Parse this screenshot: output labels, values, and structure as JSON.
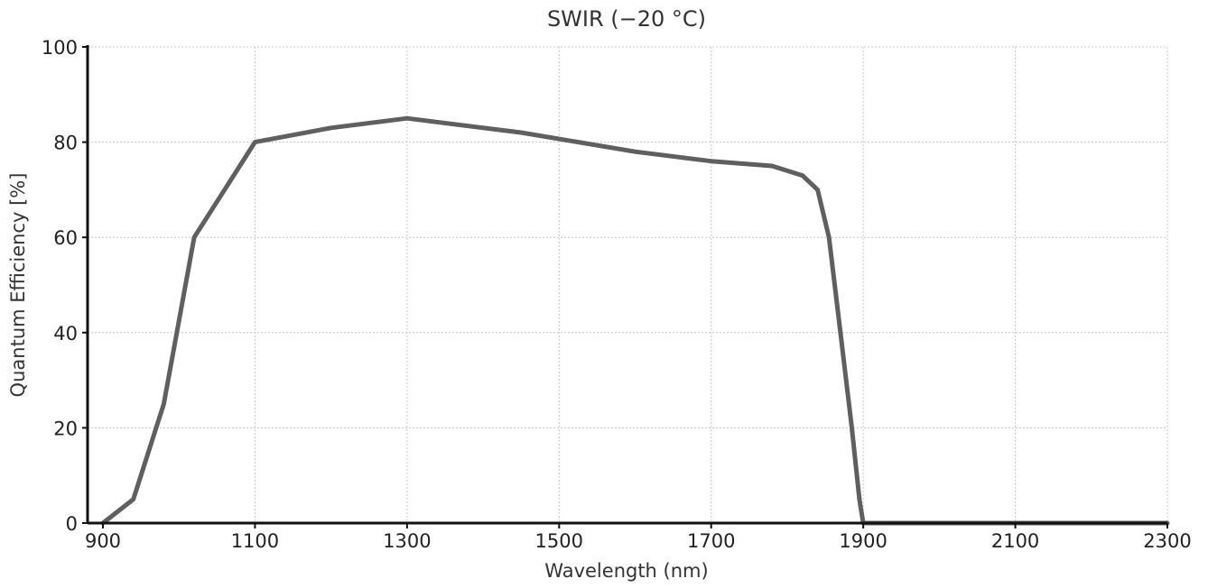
{
  "chart_data": {
    "type": "line",
    "title": "SWIR (−20 °C)",
    "xlabel": "Wavelength (nm)",
    "ylabel": "Quantum Efficiency [%]",
    "xlim": [
      900,
      2300
    ],
    "ylim": [
      0,
      100
    ],
    "xticks": [
      "900",
      "1100",
      "1300",
      "1500",
      "1700",
      "1900",
      "2100",
      "2300"
    ],
    "yticks": [
      "0",
      "20",
      "40",
      "60",
      "80",
      "100"
    ],
    "grid": true,
    "series": [
      {
        "color": "#5f5f5f",
        "x": [
          900,
          940,
          980,
          1020,
          1100,
          1200,
          1300,
          1450,
          1600,
          1700,
          1780,
          1820,
          1840,
          1855,
          1870,
          1885,
          1895,
          1900,
          2000,
          2300
        ],
        "y": [
          0,
          5,
          25,
          60,
          80,
          83,
          85,
          82,
          78,
          76,
          75,
          73,
          70,
          60,
          40,
          20,
          5,
          0,
          0,
          0
        ]
      }
    ]
  }
}
